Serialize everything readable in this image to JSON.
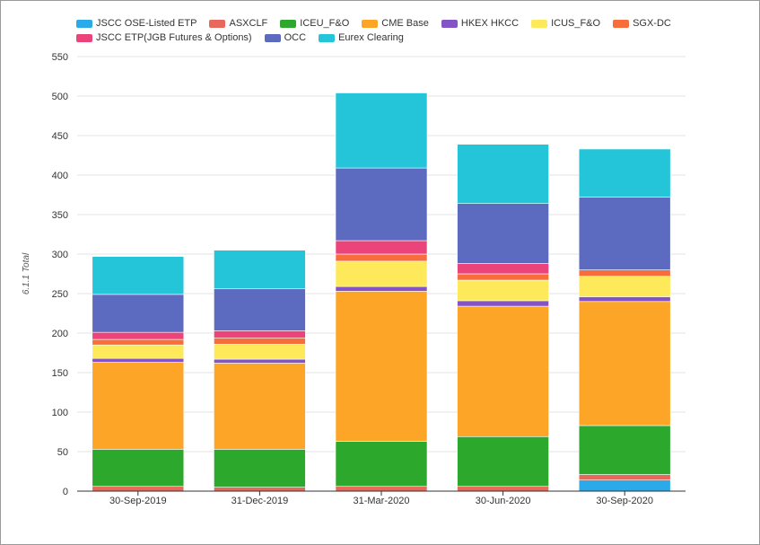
{
  "chart_data": {
    "type": "bar",
    "stacked": true,
    "categories": [
      "30-Sep-2019",
      "31-Dec-2019",
      "31-Mar-2020",
      "30-Jun-2020",
      "30-Sep-2020"
    ],
    "ylabel": "6.1.1 Total",
    "xlabel": "",
    "ylim": [
      0,
      550
    ],
    "yticks": [
      "0",
      "50",
      "100",
      "150",
      "200",
      "250",
      "300",
      "350",
      "400",
      "450",
      "500",
      "550"
    ],
    "grid": true,
    "legend_position": "top-left",
    "series": [
      {
        "name": "JSCC OSE-Listed ETP",
        "color": "#2aaae9",
        "values": [
          0,
          0,
          0,
          0,
          14
        ]
      },
      {
        "name": "ASXCLF",
        "color": "#e8695c",
        "values": [
          6,
          5,
          6,
          6,
          7
        ]
      },
      {
        "name": "ICEU_F&O",
        "color": "#2ca82c",
        "values": [
          47,
          48,
          57,
          63,
          62
        ]
      },
      {
        "name": "CME Base",
        "color": "#fca526",
        "values": [
          110,
          109,
          190,
          165,
          157
        ]
      },
      {
        "name": "HKEX HKCC",
        "color": "#8454c7",
        "values": [
          5,
          5,
          6,
          7,
          6
        ]
      },
      {
        "name": "ICUS_F&O",
        "color": "#fde95a",
        "values": [
          17,
          19,
          32,
          26,
          26
        ]
      },
      {
        "name": "SGX-DC",
        "color": "#f86d3c",
        "values": [
          7,
          8,
          9,
          8,
          8
        ]
      },
      {
        "name": "JSCC ETP(JGB Futures & Options)",
        "color": "#ea447b",
        "values": [
          9,
          9,
          17,
          13,
          0
        ]
      },
      {
        "name": "OCC",
        "color": "#5c6bc0",
        "values": [
          48,
          53,
          92,
          76,
          92
        ]
      },
      {
        "name": "Eurex Clearing",
        "color": "#25c5d9",
        "values": [
          48,
          49,
          95,
          75,
          61
        ]
      }
    ]
  }
}
